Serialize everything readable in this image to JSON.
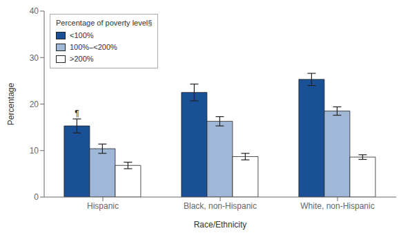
{
  "chart_data": {
    "type": "bar",
    "categories": [
      "Hispanic",
      "Black, non-Hispanic",
      "White, non-Hispanic"
    ],
    "series": [
      {
        "name": "<100%",
        "color": "#1a5096",
        "values": [
          15.3,
          22.5,
          25.3
        ],
        "errors": [
          1.5,
          1.8,
          1.3
        ]
      },
      {
        "name": "100%–<200%",
        "color": "#a0b8d8",
        "values": [
          10.4,
          16.3,
          18.5
        ],
        "errors": [
          1.0,
          1.0,
          0.9
        ]
      },
      {
        "name": ">200%",
        "color": "#ffffff",
        "values": [
          6.8,
          8.7,
          8.6
        ],
        "errors": [
          0.7,
          0.7,
          0.5
        ]
      }
    ],
    "legend_title": "Percentage of poverty level§",
    "xlabel": "Race/Ethnicity",
    "ylabel": "Percentage",
    "ylim": [
      0,
      40
    ],
    "yticks": [
      0,
      10,
      20,
      30,
      40
    ],
    "grid": false,
    "legend": "upper left",
    "annotations": [
      {
        "text": "¶",
        "category": "Hispanic",
        "series": "<100%"
      }
    ]
  }
}
